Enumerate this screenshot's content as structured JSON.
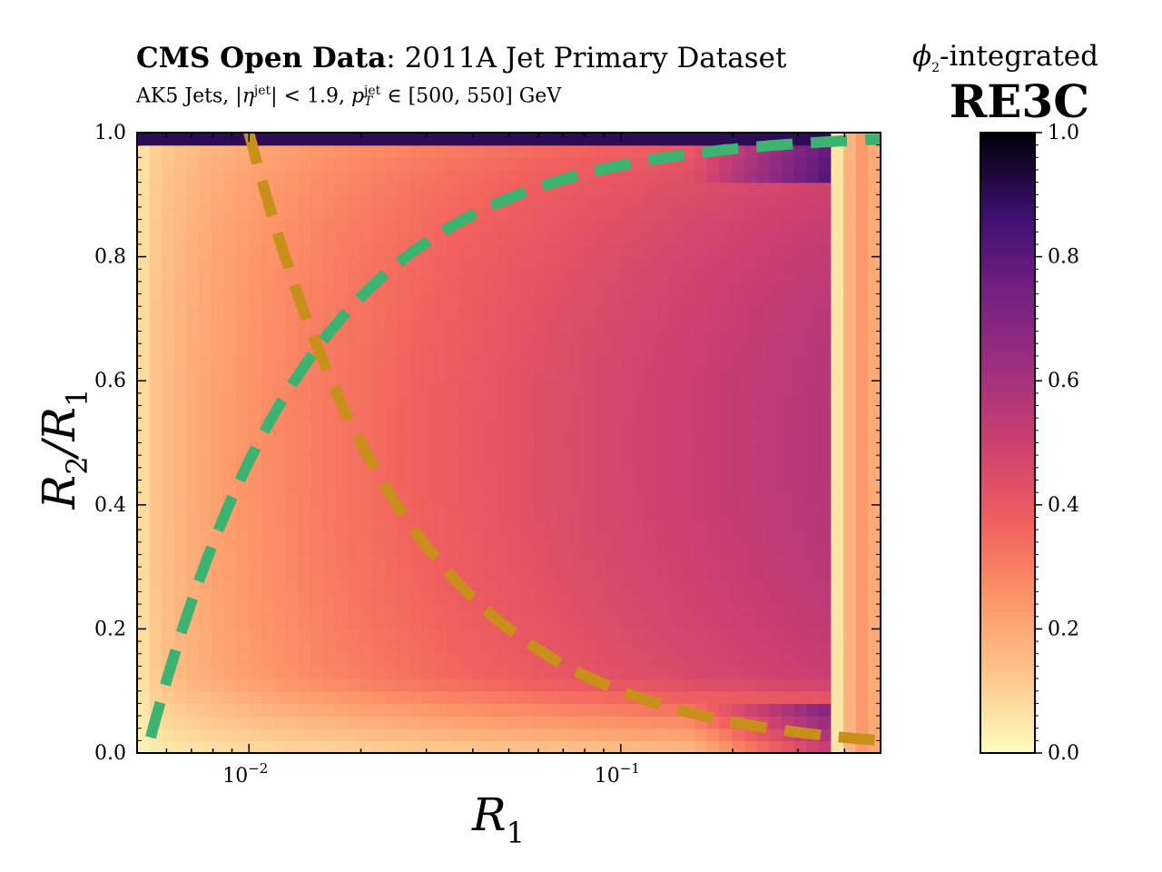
{
  "title": {
    "bold": "CMS Open Data",
    "rest": ": 2011A Jet Primary Dataset"
  },
  "subtitle": {
    "jets": "AK5 Jets,",
    "eta_cut": "|η",
    "eta_sup": "jet",
    "eta_rest": "| < 1.9,",
    "pt": "p",
    "pt_sup": "jet",
    "pt_sub": "T",
    "pt_range": "∈ [500, 550] GeV"
  },
  "colorbar": {
    "title_top": "ϕ",
    "title_top_sub": "2",
    "title_top_rest": "-integrated",
    "title_main": "RE3C",
    "ticks": [
      "0.0",
      "0.2",
      "0.4",
      "0.6",
      "0.8",
      "1.0"
    ],
    "range": [
      0.0,
      1.0
    ],
    "colormap": "magma_r"
  },
  "chart_data": {
    "type": "heatmap",
    "xlabel": "R",
    "xlabel_sub": "1",
    "ylabel": "R",
    "ylabel_sub": "2",
    "ylabel_den": "/R",
    "ylabel_den_sub": "1",
    "xscale": "log",
    "xlim": [
      0.005,
      0.5
    ],
    "ylim": [
      0.0,
      1.0
    ],
    "x_tick_labels": [
      "10",
      "10"
    ],
    "x_tick_exps": [
      "−2",
      "−1"
    ],
    "x_ticks": [
      0.01,
      0.1
    ],
    "y_ticks": [
      "0.0",
      "0.2",
      "0.4",
      "0.6",
      "0.8",
      "1.0"
    ],
    "overlay_curves": [
      {
        "color": "#3cb371",
        "style": "dashed",
        "relation": "R2 = 0.005 (R2/R1 = 0.005/R1 reflected)"
      },
      {
        "color": "#c8901a",
        "style": "dashed",
        "relation": "R2 = 0.01"
      }
    ]
  },
  "colors": {
    "green_curve": "#3cb371",
    "gold_curve": "#c8901a"
  }
}
